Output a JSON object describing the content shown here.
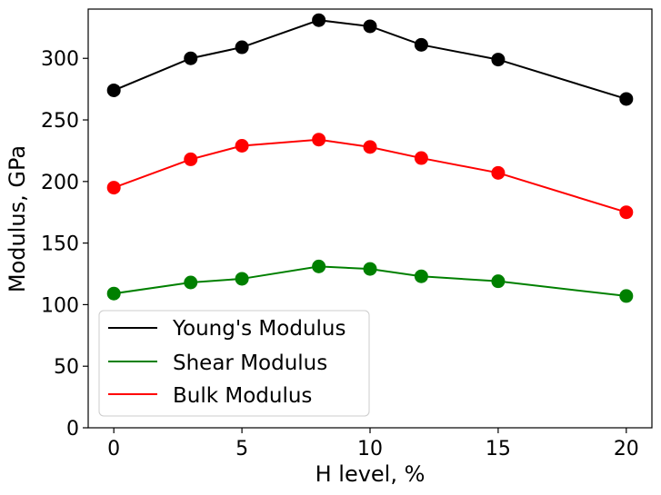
{
  "chart_data": {
    "type": "line",
    "title": "",
    "xlabel": "H level, %",
    "ylabel": "Modulus, GPa",
    "x": [
      0,
      3,
      5,
      8,
      10,
      12,
      15,
      20
    ],
    "xlim": [
      -1,
      21
    ],
    "ylim": [
      0,
      340
    ],
    "xticks": [
      0,
      5,
      10,
      15,
      20
    ],
    "yticks": [
      0,
      50,
      100,
      150,
      200,
      250,
      300
    ],
    "grid": false,
    "legend_position": "bottom-left",
    "series": [
      {
        "name": "Young's Modulus",
        "color": "#000000",
        "values": [
          274,
          300,
          309,
          331,
          326,
          311,
          299,
          267
        ]
      },
      {
        "name": "Shear Modulus",
        "color": "#008000",
        "values": [
          109,
          118,
          121,
          131,
          129,
          123,
          119,
          107
        ]
      },
      {
        "name": "Bulk Modulus",
        "color": "#ff0000",
        "values": [
          195,
          218,
          229,
          234,
          228,
          219,
          207,
          175
        ]
      }
    ]
  }
}
